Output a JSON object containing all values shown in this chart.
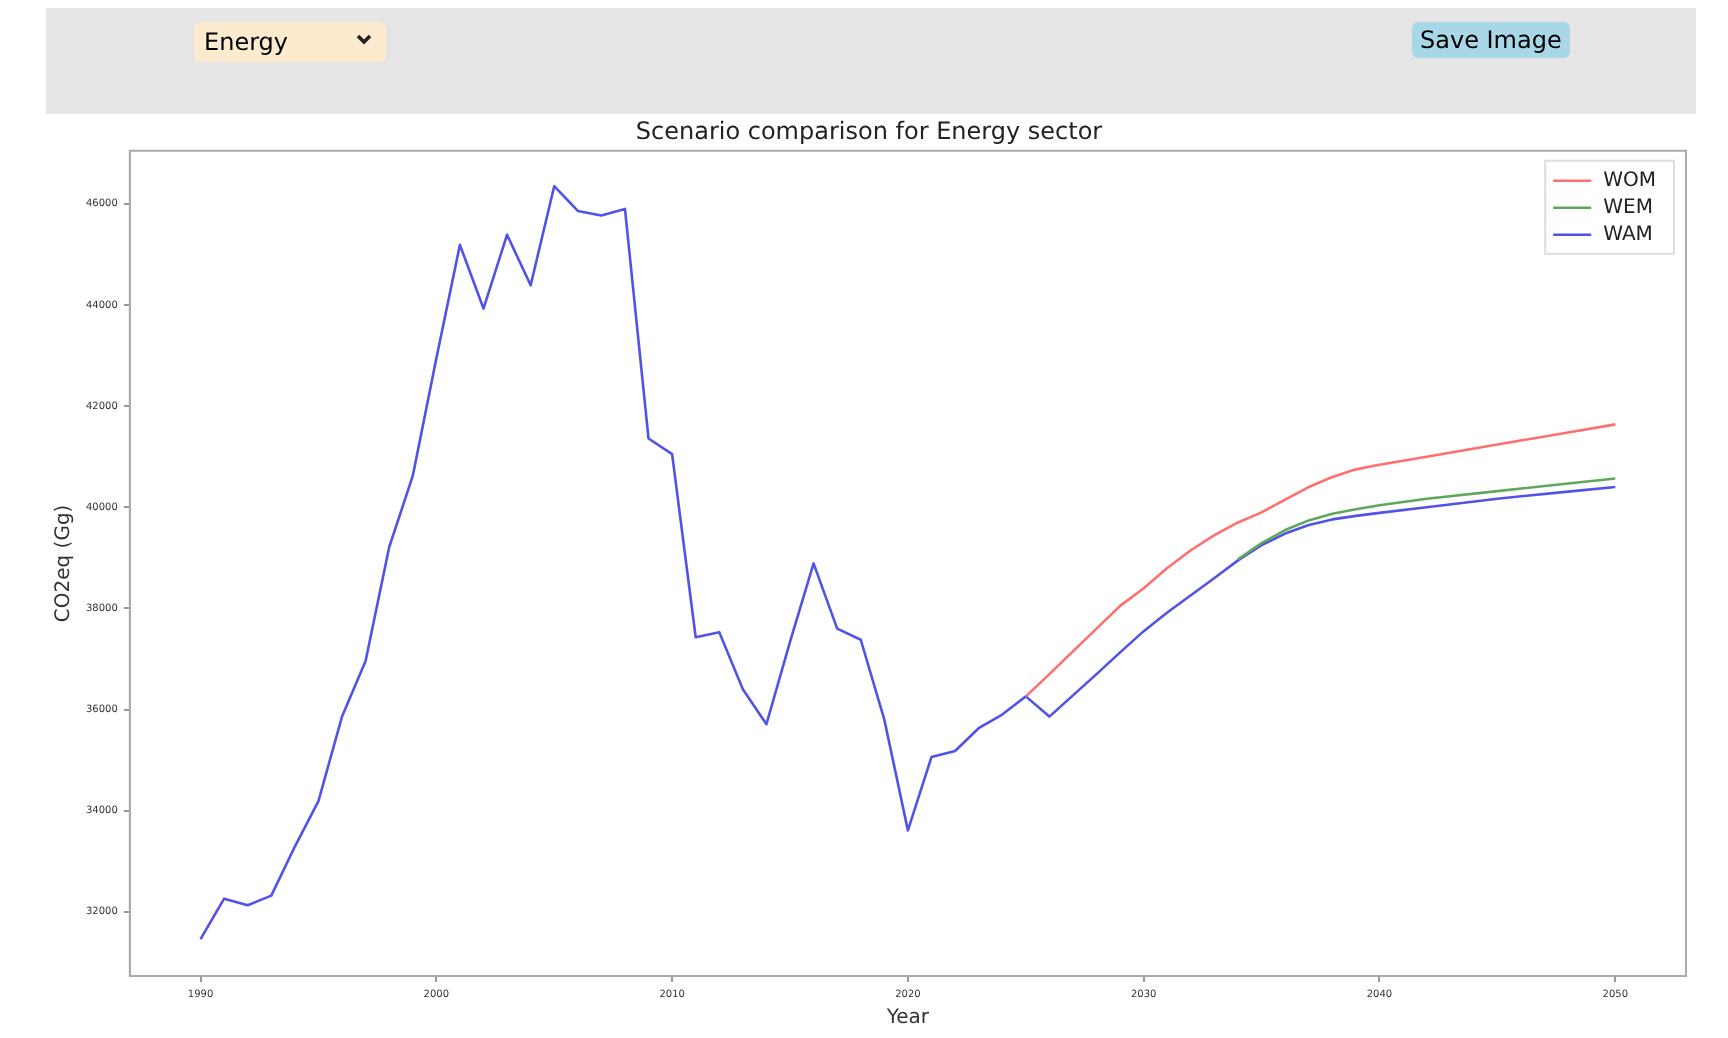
{
  "chart_data": {
    "type": "line",
    "title": "Scenario comparison for Energy sector",
    "xlabel": "Year",
    "ylabel": "CO2eq (Gg)",
    "annotations": [
      "Energy",
      "Save Image"
    ],
    "xlim": [
      1987,
      2053
    ],
    "xticks": [
      1990,
      2000,
      2010,
      2020,
      2030,
      2040,
      2050
    ],
    "ylim": [
      30730,
      47050
    ],
    "yticks": [
      32000,
      34000,
      36000,
      38000,
      40000,
      42000,
      44000,
      46000
    ],
    "grid": false,
    "legend": "top right",
    "marker": "none",
    "line_style": "solid",
    "series": [
      {
        "name": "WOM",
        "color": "#ff6f6f",
        "x": [
          2025,
          2026,
          2027,
          2028,
          2029,
          2030,
          2031,
          2032,
          2033,
          2034,
          2035,
          2036,
          2037,
          2038,
          2039,
          2040,
          2042,
          2045,
          2048,
          2050
        ],
        "values": [
          36260,
          36700,
          37150,
          37600,
          38050,
          38400,
          38800,
          39150,
          39450,
          39700,
          39900,
          40150,
          40400,
          40600,
          40750,
          40840,
          41000,
          41240,
          41480,
          41640
        ]
      },
      {
        "name": "WEM",
        "color": "#5ea85e",
        "x": [
          2034,
          2035,
          2036,
          2037,
          2038,
          2039,
          2040,
          2042,
          2045,
          2048,
          2050
        ],
        "values": [
          38970,
          39290,
          39550,
          39740,
          39870,
          39960,
          40040,
          40170,
          40320,
          40470,
          40570
        ]
      },
      {
        "name": "WAM",
        "color": "#5252e6",
        "x": [
          1990,
          1991,
          1992,
          1993,
          1994,
          1995,
          1996,
          1997,
          1998,
          1999,
          2000,
          2001,
          2002,
          2003,
          2004,
          2005,
          2006,
          2007,
          2008,
          2009,
          2010,
          2011,
          2012,
          2013,
          2014,
          2015,
          2016,
          2017,
          2018,
          2019,
          2020,
          2021,
          2022,
          2023,
          2024,
          2025,
          2026,
          2027,
          2028,
          2029,
          2030,
          2031,
          2032,
          2033,
          2034,
          2035,
          2036,
          2037,
          2038,
          2039,
          2040,
          2042,
          2045,
          2048,
          2050
        ],
        "values": [
          31460,
          32260,
          32130,
          32320,
          33290,
          34190,
          35860,
          36960,
          39210,
          40620,
          42940,
          45190,
          43930,
          45390,
          44390,
          46350,
          45860,
          45770,
          45900,
          41360,
          41050,
          37430,
          37530,
          36400,
          35710,
          37340,
          38890,
          37600,
          37380,
          35800,
          33610,
          35060,
          35180,
          35630,
          35900,
          36260,
          35860,
          36280,
          36700,
          37130,
          37550,
          37920,
          38260,
          38600,
          38950,
          39250,
          39480,
          39650,
          39760,
          39830,
          39890,
          40000,
          40170,
          40310,
          40400
        ]
      }
    ]
  }
}
